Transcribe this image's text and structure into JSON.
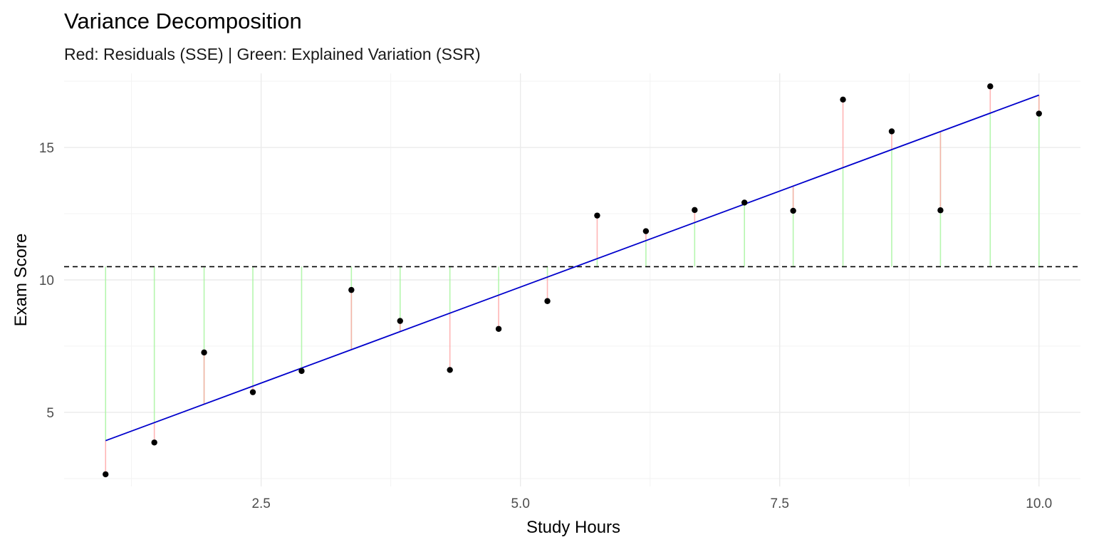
{
  "chart_data": {
    "type": "scatter",
    "title": "Variance Decomposition",
    "subtitle": "Red: Residuals (SSE) | Green: Explained Variation (SSR)",
    "xlabel": "Study Hours",
    "ylabel": "Exam Score",
    "xlim": [
      0.6,
      10.4
    ],
    "ylim": [
      2.2,
      17.8
    ],
    "x_ticks": [
      2.5,
      5.0,
      7.5,
      10.0
    ],
    "x_tick_labels": [
      "2.5",
      "5.0",
      "7.5",
      "10.0"
    ],
    "x_minor_ticks": [
      1.25,
      3.75,
      6.25,
      8.75
    ],
    "y_ticks": [
      5,
      10,
      15
    ],
    "y_tick_labels": [
      "5",
      "10",
      "15"
    ],
    "y_minor_ticks": [
      2.5,
      7.5,
      12.5,
      17.5
    ],
    "grid": true,
    "legend": "none",
    "mean_y": 10.5,
    "fit_line": {
      "intercept": 2.48,
      "slope": 1.45,
      "x_range": [
        1.0,
        10.0
      ]
    },
    "points": [
      {
        "x": 1.0,
        "y": 2.66
      },
      {
        "x": 1.47,
        "y": 3.86
      },
      {
        "x": 1.95,
        "y": 7.26
      },
      {
        "x": 2.42,
        "y": 5.76
      },
      {
        "x": 2.89,
        "y": 6.56
      },
      {
        "x": 3.37,
        "y": 9.62
      },
      {
        "x": 3.84,
        "y": 8.45
      },
      {
        "x": 4.32,
        "y": 6.6
      },
      {
        "x": 4.79,
        "y": 8.15
      },
      {
        "x": 5.26,
        "y": 9.2
      },
      {
        "x": 5.74,
        "y": 12.43
      },
      {
        "x": 6.21,
        "y": 11.84
      },
      {
        "x": 6.68,
        "y": 12.64
      },
      {
        "x": 7.16,
        "y": 12.92
      },
      {
        "x": 7.63,
        "y": 12.61
      },
      {
        "x": 8.11,
        "y": 16.81
      },
      {
        "x": 8.58,
        "y": 15.61
      },
      {
        "x": 9.05,
        "y": 12.63
      },
      {
        "x": 9.53,
        "y": 17.31
      },
      {
        "x": 10.0,
        "y": 16.28
      }
    ],
    "colors": {
      "residual": "#ffa8a8",
      "explained": "#a8f5a0",
      "fit_line": "#0000cc",
      "mean_line": "#000000",
      "points": "#000000",
      "grid_major": "#ebebeb",
      "grid_minor": "#f3f3f3"
    }
  }
}
